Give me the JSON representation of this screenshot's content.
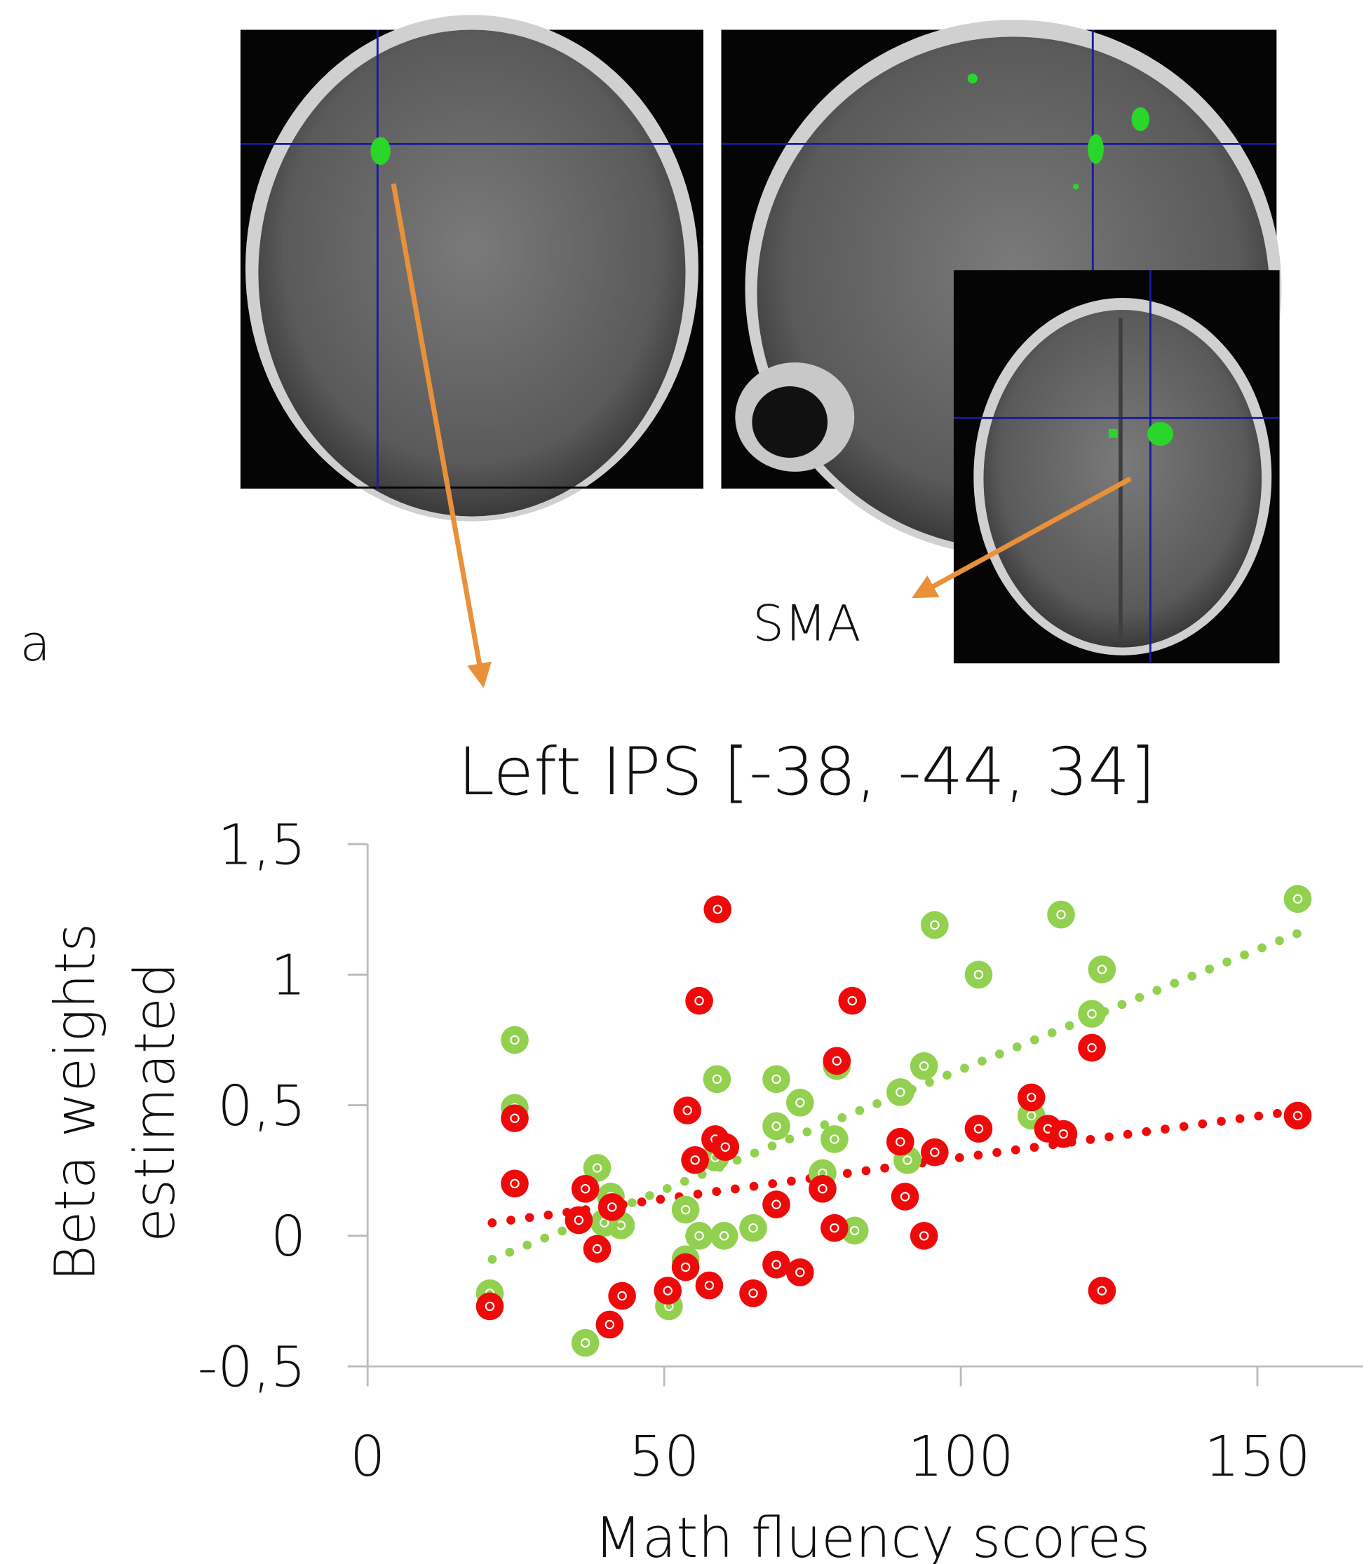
{
  "panel_label": "a",
  "annotation": "SMA",
  "chart_data": {
    "type": "scatter",
    "title": "Left IPS [-38, -44, 34]",
    "xlabel": "Math fluency scores",
    "ylabel": [
      "Beta weights",
      "estimated"
    ],
    "xlim": [
      -3.35,
      167.8
    ],
    "ylim": [
      -0.5,
      1.5
    ],
    "xticks": [
      0,
      50,
      100,
      150
    ],
    "yticks": [
      {
        "value": -0.5,
        "label": "-0,5"
      },
      0,
      {
        "value": 0.5,
        "label": "0,5"
      },
      1,
      {
        "value": 1.5,
        "label": "1,5"
      }
    ],
    "grid": false,
    "series": [
      {
        "color": "#92d050",
        "x": [
          24.8,
          24.8,
          20.6,
          38.7,
          36.7,
          41,
          42.7,
          39.9,
          50.8,
          53.6,
          53.6,
          55.9,
          58.9,
          60.1,
          58.6,
          65,
          68.9,
          68.9,
          72.9,
          76.7,
          79.1,
          78.7,
          82.1,
          89.8,
          91,
          93.8,
          95.6,
          103,
          111.9,
          116.9,
          122.1,
          123.8,
          156.8
        ],
        "values": [
          0.75,
          0.49,
          -0.22,
          0.26,
          -0.41,
          0.15,
          0.04,
          0.05,
          -0.27,
          0.1,
          -0.09,
          0,
          0.6,
          0,
          0.3,
          0.03,
          0.6,
          0.42,
          0.51,
          0.24,
          0.65,
          0.37,
          0.02,
          0.55,
          0.29,
          0.65,
          1.19,
          1,
          0.46,
          1.23,
          0.85,
          1.02,
          1.29
        ],
        "trendline": {
          "x": [
            21,
            157
          ],
          "values": [
            -0.09,
            1.16
          ]
        }
      },
      {
        "color": "#ee0a0a",
        "x": [
          59,
          55.9,
          81.7,
          79.1,
          122.1,
          111.9,
          53.9,
          24.8,
          24.8,
          156.8,
          103,
          114.7,
          117.3,
          58.6,
          60.3,
          89.8,
          95.6,
          55.2,
          36.7,
          41.2,
          35.6,
          76.7,
          68.9,
          90.6,
          78.7,
          38.7,
          93.8,
          53.6,
          68.9,
          72.9,
          50.6,
          57.6,
          65,
          42.9,
          40.8,
          20.6,
          123.8
        ],
        "values": [
          1.25,
          0.9,
          0.9,
          0.67,
          0.72,
          0.53,
          0.48,
          0.45,
          0.2,
          0.46,
          0.41,
          0.41,
          0.39,
          0.37,
          0.34,
          0.36,
          0.32,
          0.29,
          0.18,
          0.11,
          0.06,
          0.18,
          0.12,
          0.15,
          0.03,
          -0.05,
          0,
          -0.12,
          -0.11,
          -0.14,
          -0.21,
          -0.19,
          -0.22,
          -0.23,
          -0.34,
          -0.27,
          -0.21
        ],
        "trendline": {
          "x": [
            21,
            157
          ],
          "values": [
            0.05,
            0.48
          ]
        }
      }
    ]
  }
}
